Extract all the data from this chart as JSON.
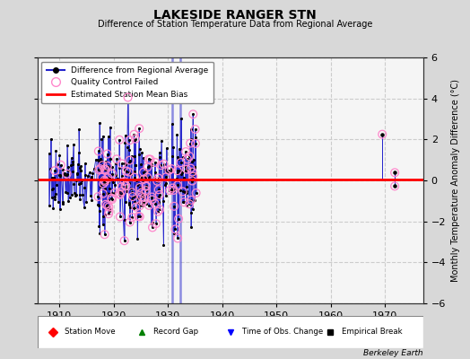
{
  "title": "LAKESIDE RANGER STN",
  "subtitle": "Difference of Station Temperature Data from Regional Average",
  "ylabel": "Monthly Temperature Anomaly Difference (°C)",
  "xlabel_years": [
    1910,
    1920,
    1930,
    1940,
    1950,
    1960,
    1970
  ],
  "xlim": [
    1906,
    1977
  ],
  "ylim": [
    -6,
    6
  ],
  "yticks": [
    -6,
    -4,
    -2,
    0,
    2,
    4,
    6
  ],
  "bias_level": 0.05,
  "time_of_obs_change_years": [
    1930.8,
    1932.3
  ],
  "bg_color": "#d8d8d8",
  "plot_bg_color": "#f5f5f5",
  "line_color": "#2222cc",
  "dot_color": "#000000",
  "qc_color": "#ff88cc",
  "bias_color": "#ff0000",
  "grid_color": "#cccccc",
  "footer": "Berkeley Earth",
  "seed": 42,
  "period1_start": 1908.0,
  "period1_end": 1926.5,
  "period2_start": 1918.0,
  "period2_end": 1935.2,
  "sparse_points": [
    {
      "year": 1969.5,
      "value": 2.25,
      "qc": true
    },
    {
      "year": 1971.8,
      "value": 0.38,
      "qc": true
    },
    {
      "year": 1971.8,
      "value": -0.28,
      "qc": true
    }
  ]
}
